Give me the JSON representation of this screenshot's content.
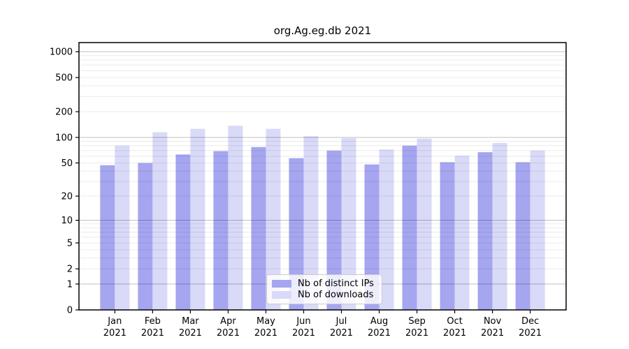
{
  "chart_data": {
    "type": "bar",
    "title": "org.Ag.eg.db 2021",
    "categories": [
      "Jan",
      "Feb",
      "Mar",
      "Apr",
      "May",
      "Jun",
      "Jul",
      "Aug",
      "Sep",
      "Oct",
      "Nov",
      "Dec"
    ],
    "category_year": "2021",
    "series": [
      {
        "name": "Nb of distinct IPs",
        "color": "#a5a5f0",
        "values": [
          47,
          50,
          63,
          69,
          77,
          57,
          70,
          48,
          80,
          51,
          67,
          51
        ]
      },
      {
        "name": "Nb of downloads",
        "color": "#d9d9f8",
        "values": [
          80,
          115,
          126,
          137,
          126,
          103,
          98,
          72,
          97,
          61,
          86,
          70
        ]
      }
    ],
    "xlabel": "",
    "ylabel": "",
    "yscale": "log1p",
    "yticks": [
      0,
      1,
      2,
      5,
      10,
      20,
      50,
      100,
      200,
      500,
      1000
    ],
    "ylim": [
      0,
      1276
    ],
    "grid": "horizontal",
    "legend_position": "inside-bottom-center",
    "axis_color": "#000000",
    "major_grid_color": "rgba(0,0,0,0.25)",
    "minor_grid_color": "rgba(0,0,0,0.08)"
  }
}
